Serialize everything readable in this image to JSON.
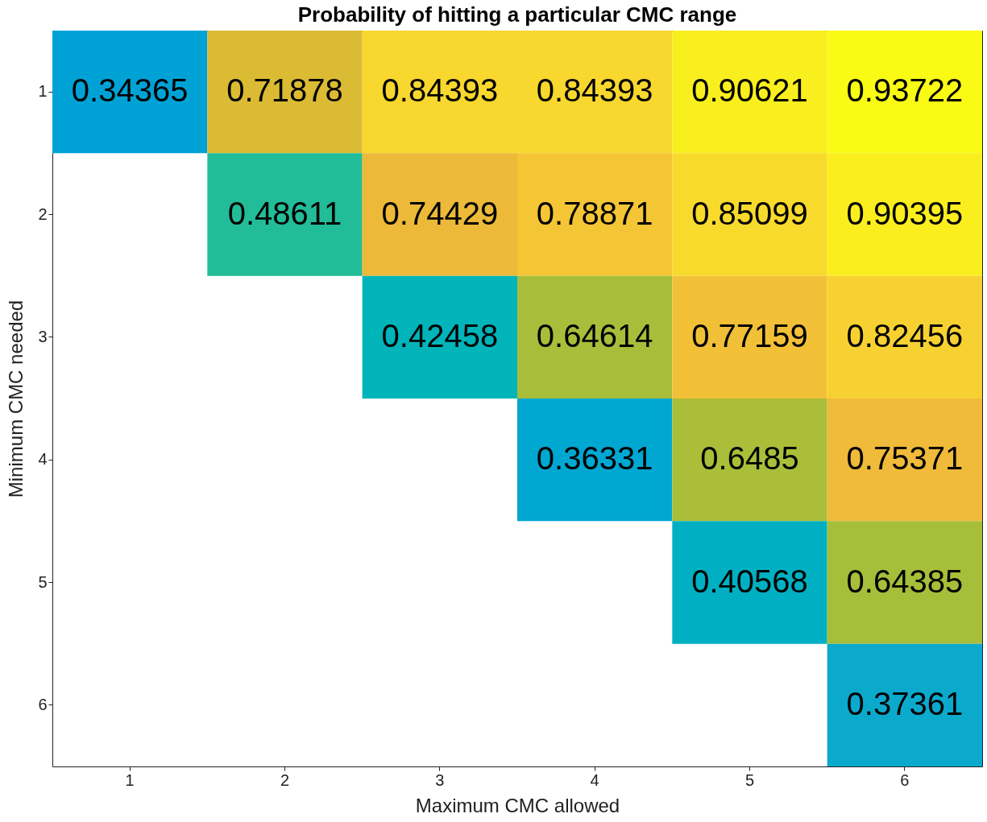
{
  "chart_data": {
    "type": "heatmap",
    "title": "Probability of hitting a particular CMC range",
    "xlabel": "Maximum CMC allowed",
    "ylabel": "Minimum CMC needed",
    "categories": [
      "1",
      "2",
      "3",
      "4",
      "5",
      "6"
    ],
    "y_categories": [
      "1",
      "2",
      "3",
      "4",
      "5",
      "6"
    ],
    "cells": [
      [
        0.34365,
        0.71878,
        0.84393,
        0.84393,
        0.90621,
        0.93722
      ],
      [
        null,
        0.48611,
        0.74429,
        0.78871,
        0.85099,
        0.90395
      ],
      [
        null,
        null,
        0.42458,
        0.64614,
        0.77159,
        0.82456
      ],
      [
        null,
        null,
        null,
        0.36331,
        0.6485,
        0.75371
      ],
      [
        null,
        null,
        null,
        null,
        0.40568,
        0.64385
      ],
      [
        null,
        null,
        null,
        null,
        null,
        0.37361
      ]
    ],
    "data_labels": true
  }
}
